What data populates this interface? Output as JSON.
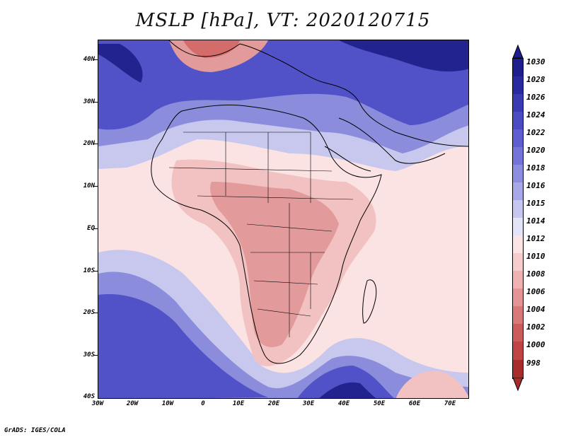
{
  "title": "MSLP [hPa], VT: 2020120715",
  "credit": "GrADS: IGES/COLA",
  "y_axis": {
    "labels": [
      "40N",
      "30N",
      "20N",
      "10N",
      "EQ",
      "10S",
      "20S",
      "30S",
      "40S"
    ]
  },
  "x_axis": {
    "labels": [
      "30W",
      "20W",
      "10W",
      "0",
      "10E",
      "20E",
      "30E",
      "40E",
      "50E",
      "60E",
      "70E"
    ]
  },
  "colorbar": {
    "levels": [
      "1030",
      "1028",
      "1026",
      "1024",
      "1022",
      "1020",
      "1018",
      "1016",
      "1015",
      "1014",
      "1012",
      "1010",
      "1008",
      "1006",
      "1004",
      "1002",
      "1000",
      "998"
    ],
    "colors": [
      "#1e1e8c",
      "#2a2aa0",
      "#3a3ab4",
      "#4b4bc4",
      "#5e5ed0",
      "#7474d8",
      "#8d8ddf",
      "#a8a8e8",
      "#c6c6f0",
      "#e4e4f8",
      "#fbe4e4",
      "#f6cccc",
      "#eeb0b0",
      "#e49494",
      "#d87878",
      "#cc5c5c",
      "#c04444",
      "#a82c2c"
    ]
  },
  "fields": {
    "low_high_colors": {
      "deep_high": "#23238f",
      "high": "#5252c8",
      "mid_high": "#8c8cdc",
      "weak_high": "#c8c8ef",
      "neutral": "#fbe3e3",
      "weak_low": "#f2c2c2",
      "low": "#e29a9a",
      "deep_low": "#d46c6c"
    }
  }
}
